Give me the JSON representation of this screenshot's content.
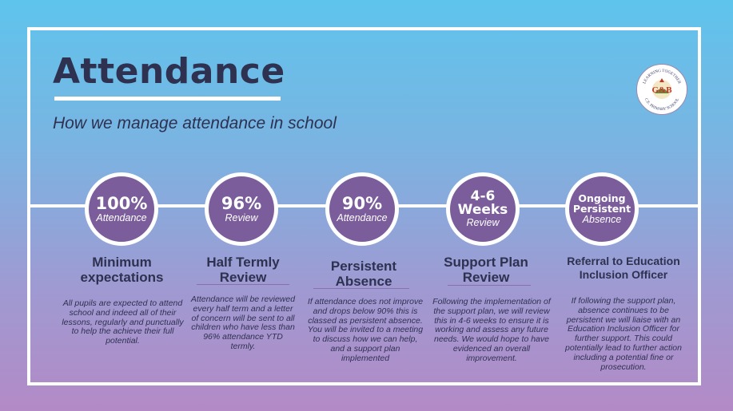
{
  "title": "Attendance",
  "subtitle": "How we manage attendance in school",
  "logo": {
    "top_text": "LEARNING TOGETHER",
    "initials": "G&B",
    "bottom_text": "C.E. PRIMARY SCHOOL"
  },
  "colors": {
    "circle_fill": "#7a5d9a",
    "text_dark": "#2e3150",
    "frame": "#ffffff"
  },
  "steps": [
    {
      "big": "100%",
      "sub": "Attendance",
      "heading": "Minimum expectations",
      "description": "All pupils are expected to attend school and indeed all of their lessons, regularly and punctually to help the achieve their full potential."
    },
    {
      "big": "96%",
      "sub": "Review",
      "heading": "Half Termly Review",
      "description": "Attendance will be reviewed every half term and a letter of concern will be sent to all children who have less than 96% attendance YTD termly."
    },
    {
      "big": "90%",
      "sub": "Attendance",
      "heading": "Persistent Absence",
      "description": "If attendance does not improve and drops below 90% this is classed as persistent absence. You will be invited to a meeting to discuss how we can help, and a support plan implemented"
    },
    {
      "big": "4-6 Weeks",
      "sub": "Review",
      "heading": "Support Plan Review",
      "description": "Following the implementation of the support plan, we will review this in 4-6 weeks to ensure it is working and assess any future needs. We would hope to have evidenced an overall improvement."
    },
    {
      "big": "Ongoing Persistent",
      "sub": "Absence",
      "heading": "Referral to Education Inclusion Officer",
      "description": "If following the support plan, absence continues to be persistent we will liaise with an Education Inclusion Officer for further support. This could potentially lead to further action including a potential fine or prosecution."
    }
  ]
}
